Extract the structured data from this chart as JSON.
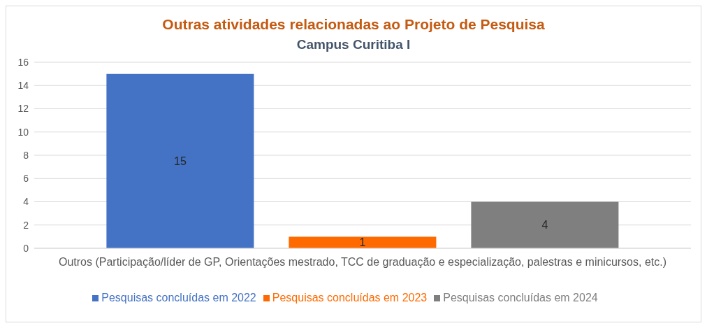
{
  "chart_data": {
    "type": "bar",
    "title": "Outras atividades relacionadas ao Projeto de Pesquisa",
    "subtitle": "Campus Curitiba I",
    "categories": [
      "Outros (Participação/líder de GP, Orientações mestrado, TCC de graduação e especialização, palestras e minicursos, etc.)"
    ],
    "series": [
      {
        "name": "Pesquisas concluídas em 2022",
        "color": "#4472c4",
        "values": [
          15
        ]
      },
      {
        "name": "Pesquisas concluídas em 2023",
        "color": "#ff6a00",
        "values": [
          1
        ]
      },
      {
        "name": "Pesquisas concluídas em 2024",
        "color": "#7f7f7f",
        "values": [
          4
        ]
      }
    ],
    "ylim": [
      0,
      16
    ],
    "yticks": [
      0,
      2,
      4,
      6,
      8,
      10,
      12,
      14,
      16
    ],
    "grid": "y",
    "legend": "bottom",
    "data_labels": true
  }
}
